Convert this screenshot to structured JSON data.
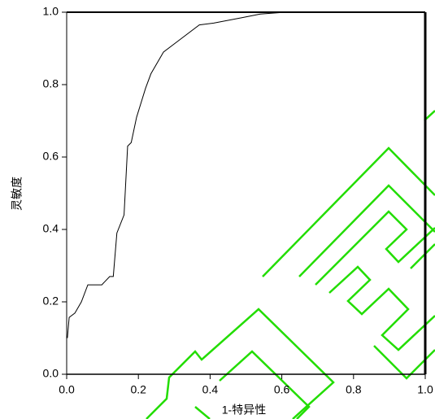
{
  "chart_data": {
    "type": "line",
    "x_label": "1-特异性",
    "y_label": "灵敏度",
    "x": [
      0.002,
      0.007,
      0.023,
      0.041,
      0.059,
      0.098,
      0.12,
      0.13,
      0.14,
      0.16,
      0.17,
      0.18,
      0.195,
      0.22,
      0.235,
      0.27,
      0.31,
      0.37,
      0.41,
      0.49,
      0.54,
      0.61
    ],
    "values": [
      0.1,
      0.157,
      0.169,
      0.2,
      0.247,
      0.247,
      0.27,
      0.27,
      0.39,
      0.44,
      0.63,
      0.64,
      0.71,
      0.79,
      0.83,
      0.89,
      0.92,
      0.965,
      0.97,
      0.985,
      0.995,
      1.0
    ],
    "color": "#000000",
    "xlim": [
      0,
      1
    ],
    "ylim": [
      0,
      1
    ],
    "xticks": [
      {
        "value": 0,
        "label": "0.0"
      },
      0.2,
      0.4,
      0.6,
      0.8,
      {
        "value": 1,
        "label": "1.0"
      }
    ],
    "yticks": [
      {
        "value": 0,
        "label": "0.0"
      },
      0.2,
      0.4,
      0.6,
      0.8,
      {
        "value": 1,
        "label": "1.0"
      }
    ],
    "grid": false
  }
}
